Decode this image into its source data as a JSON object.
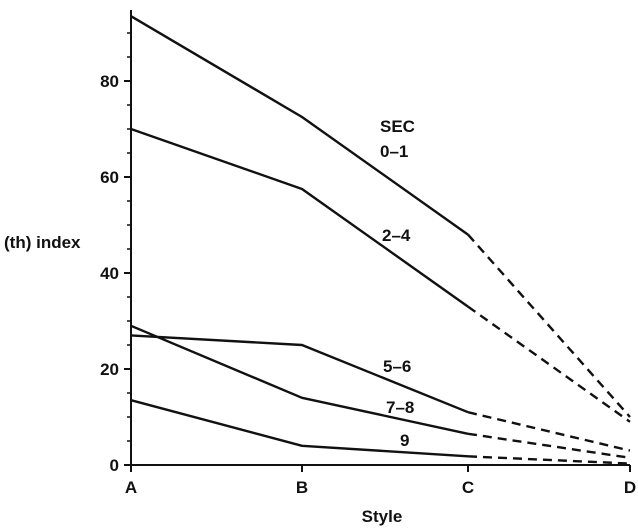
{
  "chart_data": {
    "type": "line",
    "xlabel": "Style",
    "ylabel": "(th) index",
    "categories": [
      "A",
      "B",
      "C",
      "D"
    ],
    "ylim": [
      0,
      96
    ],
    "yticks": [
      0,
      20,
      40,
      60,
      80
    ],
    "grid": false,
    "legend_title": "SEC",
    "line_style_note": "solid A–C, dashed C–D",
    "series": [
      {
        "name": "0–1",
        "values": [
          93.5,
          72.5,
          48,
          10
        ]
      },
      {
        "name": "2–4",
        "values": [
          70,
          57.5,
          33,
          9
        ]
      },
      {
        "name": "5–6",
        "values": [
          27,
          25,
          11,
          3
        ]
      },
      {
        "name": "7–8",
        "values": [
          29,
          14,
          6.5,
          1.5
        ]
      },
      {
        "name": "9",
        "values": [
          13.5,
          4,
          1.8,
          0.3
        ]
      }
    ]
  }
}
